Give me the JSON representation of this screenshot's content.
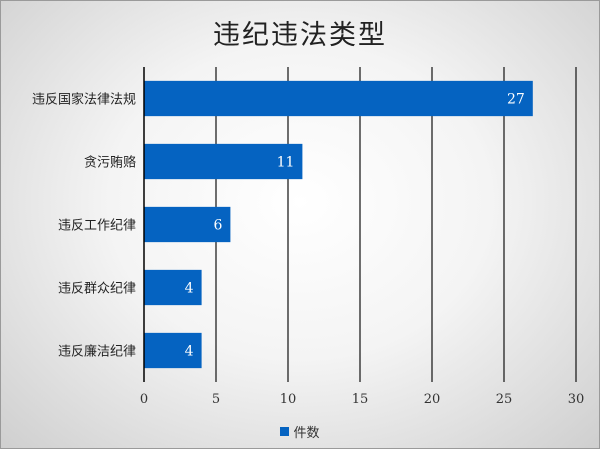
{
  "chart_data": {
    "type": "bar",
    "orientation": "horizontal",
    "title": "违纪违法类型",
    "categories": [
      "违反国家法律法规",
      "贪污贿赂",
      "违反工作纪律",
      "违反群众纪律",
      "违反廉洁纪律"
    ],
    "series": [
      {
        "name": "件数",
        "values": [
          27,
          11,
          6,
          4,
          4
        ],
        "color": "#0563c1"
      }
    ],
    "xlim": [
      0,
      30
    ],
    "xticks": [
      0,
      5,
      10,
      15,
      20,
      25,
      30
    ],
    "grid": true,
    "legend_position": "bottom",
    "data_labels": "inside-end"
  }
}
